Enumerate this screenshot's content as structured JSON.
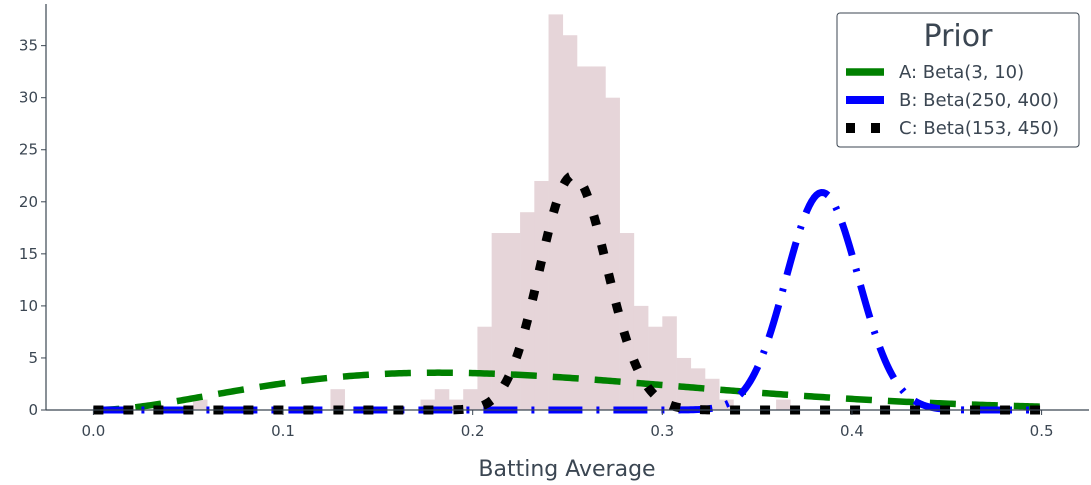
{
  "chart_data": {
    "type": "area",
    "title": "",
    "xlabel": "Batting Average",
    "ylabel": "",
    "xlim": [
      -0.025,
      0.525
    ],
    "ylim": [
      0,
      39
    ],
    "xticks": [
      0.0,
      0.1,
      0.2,
      0.3,
      0.4,
      0.5
    ],
    "xtick_labels": [
      "0.0",
      "0.1",
      "0.2",
      "0.3",
      "0.4",
      "0.5"
    ],
    "yticks": [
      0,
      5,
      10,
      15,
      20,
      25,
      30,
      35
    ],
    "ytick_labels": [
      "0",
      "5",
      "10",
      "15",
      "20",
      "25",
      "30",
      "35"
    ],
    "grid": false,
    "histogram": {
      "color": "#e6d5d9",
      "bin_width": 0.0075,
      "bins": [
        {
          "x": 0.0525,
          "h": 1
        },
        {
          "x": 0.125,
          "h": 2
        },
        {
          "x": 0.1725,
          "h": 1
        },
        {
          "x": 0.18,
          "h": 2
        },
        {
          "x": 0.1875,
          "h": 1
        },
        {
          "x": 0.195,
          "h": 2
        },
        {
          "x": 0.2025,
          "h": 8
        },
        {
          "x": 0.21,
          "h": 17
        },
        {
          "x": 0.2175,
          "h": 17
        },
        {
          "x": 0.225,
          "h": 19
        },
        {
          "x": 0.2325,
          "h": 22
        },
        {
          "x": 0.24,
          "h": 38
        },
        {
          "x": 0.2475,
          "h": 36
        },
        {
          "x": 0.255,
          "h": 33
        },
        {
          "x": 0.2625,
          "h": 33
        },
        {
          "x": 0.27,
          "h": 30
        },
        {
          "x": 0.2775,
          "h": 17
        },
        {
          "x": 0.285,
          "h": 10
        },
        {
          "x": 0.2925,
          "h": 8
        },
        {
          "x": 0.3,
          "h": 9
        },
        {
          "x": 0.3075,
          "h": 5
        },
        {
          "x": 0.315,
          "h": 4
        },
        {
          "x": 0.3225,
          "h": 3
        },
        {
          "x": 0.33,
          "h": 1
        },
        {
          "x": 0.36,
          "h": 1
        }
      ]
    },
    "legend": {
      "title": "Prior",
      "placement": "top-right"
    },
    "series": [
      {
        "name": "A: Beta(3, 10)",
        "alpha": 3,
        "beta": 10,
        "color": "#008000",
        "style": "dashed"
      },
      {
        "name": "B: Beta(250, 400)",
        "alpha": 250,
        "beta": 400,
        "color": "#0000ff",
        "style": "dashdot"
      },
      {
        "name": "C: Beta(153, 450)",
        "alpha": 153,
        "beta": 450,
        "color": "#000000",
        "style": "dotted"
      }
    ],
    "x_range": [
      0.0,
      0.5
    ]
  }
}
